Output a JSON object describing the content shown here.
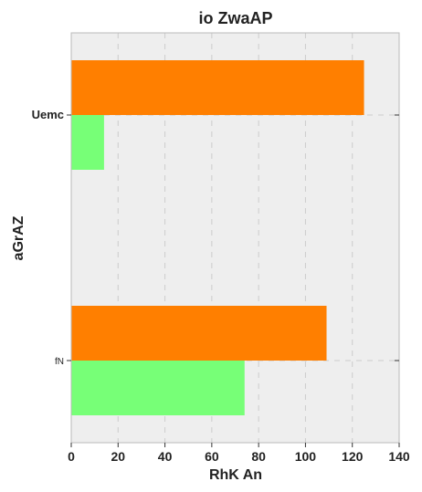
{
  "chart_data": {
    "type": "bar",
    "orientation": "horizontal",
    "title": "io ZwaAP",
    "xlabel": "RhK An",
    "ylabel": "aGrAZ",
    "categories": [
      "Uemc",
      "fN"
    ],
    "series": [
      {
        "values": [
          125,
          109
        ],
        "color": "#ff7f00"
      },
      {
        "values": [
          14,
          74
        ],
        "color": "#77ff77"
      }
    ],
    "xlim": [
      0,
      140
    ],
    "xticks": [
      "0",
      "20",
      "40",
      "60",
      "80",
      "100",
      "120",
      "140"
    ],
    "grid": true,
    "legend": "none"
  },
  "colors": {
    "plot_background": "#eeeeee",
    "grid": "#cccccc",
    "frame": "#bbbbbb"
  }
}
